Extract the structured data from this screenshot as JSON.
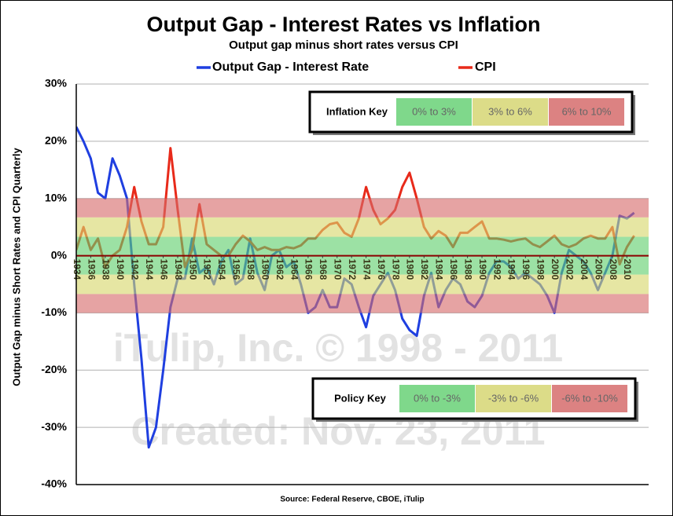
{
  "chart_data": {
    "type": "line",
    "title": "Output Gap - Interest Rates vs Inflation",
    "subtitle": "Output gap minus short rates versus CPI",
    "y_label": "Output Gap minus Short Rates and CPI Quarterly",
    "source": "Source: Federal Reserve, CBOE, iTulip",
    "watermark": [
      "iTulip, Inc. © 1998 - 2011",
      "Created: Nov. 23, 2011"
    ],
    "legend": "top",
    "grid": true,
    "x": [
      1934,
      1935,
      1936,
      1937,
      1938,
      1939,
      1940,
      1941,
      1942,
      1943,
      1944,
      1945,
      1946,
      1947,
      1948,
      1949,
      1950,
      1951,
      1952,
      1953,
      1954,
      1955,
      1956,
      1957,
      1958,
      1959,
      1960,
      1961,
      1962,
      1963,
      1964,
      1965,
      1966,
      1967,
      1968,
      1969,
      1970,
      1971,
      1972,
      1973,
      1974,
      1975,
      1976,
      1977,
      1978,
      1979,
      1980,
      1981,
      1982,
      1983,
      1984,
      1985,
      1986,
      1987,
      1988,
      1989,
      1990,
      1991,
      1992,
      1993,
      1994,
      1995,
      1996,
      1997,
      1998,
      1999,
      2000,
      2001,
      2002,
      2003,
      2004,
      2005,
      2006,
      2007,
      2008,
      2009,
      2010,
      2011
    ],
    "series": [
      {
        "name": "Output Gap - Interest Rate",
        "color": "#1f3fe0",
        "values": [
          22.5,
          20,
          17,
          11,
          10,
          17,
          14,
          10,
          -5,
          -18,
          -33.5,
          -30,
          -20,
          -9,
          -4,
          -4,
          3,
          -3,
          -2,
          -5,
          -1,
          1,
          -5,
          -4,
          3,
          -3,
          -6,
          0,
          1,
          -2,
          -1,
          -5,
          -10,
          -9,
          -6,
          -9,
          -9,
          -4,
          -5,
          -9,
          -12.5,
          -7,
          -5,
          -3,
          -6,
          -11,
          -13,
          -14,
          -7,
          -3,
          -9,
          -6,
          -4,
          -5,
          -8,
          -9,
          -7,
          -3,
          -1,
          -1,
          -2,
          -4,
          -3,
          -4,
          -5,
          -7,
          -10,
          -3,
          1,
          0,
          -1,
          -3,
          -6,
          -3,
          0,
          7,
          6.5,
          7.5
        ]
      },
      {
        "name": "CPI",
        "color": "#e82a1a",
        "values": [
          1,
          5,
          1,
          3,
          -2,
          0,
          1,
          5,
          12,
          6,
          2,
          2,
          5,
          18.8,
          8,
          -2,
          1,
          9,
          2,
          1,
          0,
          0,
          2,
          3.5,
          2.5,
          1,
          1.5,
          1,
          1,
          1.5,
          1.3,
          1.8,
          3,
          3,
          4.5,
          5.5,
          5.8,
          4,
          3.3,
          6.5,
          12,
          8,
          5.5,
          6.5,
          8,
          12,
          14.5,
          10,
          5,
          3,
          4.3,
          3.5,
          1.5,
          4,
          4,
          5,
          6,
          3,
          3,
          2.8,
          2.5,
          2.8,
          3,
          2,
          1.5,
          2.5,
          3.5,
          2,
          1.5,
          2,
          3,
          3.5,
          3,
          3,
          5,
          -1.5,
          1.5,
          3.5
        ]
      }
    ],
    "xlim": [
      1934,
      2013
    ],
    "xticks": [
      1934,
      1936,
      1938,
      1940,
      1942,
      1944,
      1946,
      1948,
      1950,
      1952,
      1954,
      1956,
      1958,
      1960,
      1962,
      1964,
      1966,
      1968,
      1970,
      1972,
      1974,
      1976,
      1978,
      1980,
      1982,
      1984,
      1986,
      1988,
      1990,
      1992,
      1994,
      1996,
      1998,
      2000,
      2002,
      2004,
      2006,
      2008,
      2010
    ],
    "ylim": [
      -40,
      30
    ],
    "yticks": [
      {
        "value": -40,
        "label": "-40%"
      },
      {
        "value": -30,
        "label": "-30%"
      },
      {
        "value": -20,
        "label": "-20%"
      },
      {
        "value": -10,
        "label": "-10%"
      },
      {
        "value": 0,
        "label": "0%"
      },
      {
        "value": 10,
        "label": "10%"
      },
      {
        "value": 20,
        "label": "20%"
      },
      {
        "value": 30,
        "label": "30%"
      }
    ],
    "bands": [
      {
        "range": [
          -3.3,
          3.3
        ],
        "color": "#5fcf6c"
      },
      {
        "range": [
          3.3,
          6.7
        ],
        "color": "#d6d66a"
      },
      {
        "range": [
          6.7,
          10
        ],
        "color": "#d66a6a"
      },
      {
        "range": [
          -6.7,
          -3.3
        ],
        "color": "#d6d66a"
      },
      {
        "range": [
          -10,
          -6.7
        ],
        "color": "#d66a6a"
      }
    ],
    "inflation_key": {
      "title": "Inflation Key",
      "items": [
        {
          "label": "0% to 3%",
          "color": "#7fd88b"
        },
        {
          "label": "3% to 6%",
          "color": "#dcdc88"
        },
        {
          "label": "6% to 10%",
          "color": "#dc8282"
        }
      ]
    },
    "policy_key": {
      "title": "Policy Key",
      "items": [
        {
          "label": "0% to -3%",
          "color": "#7fd88b"
        },
        {
          "label": "-3% to -6%",
          "color": "#dcdc88"
        },
        {
          "label": "-6% to -10%",
          "color": "#dc8282"
        }
      ]
    }
  }
}
